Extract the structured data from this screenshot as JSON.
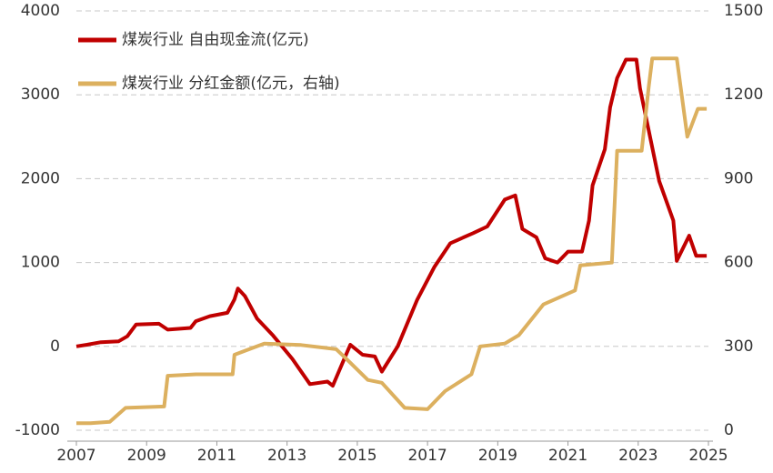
{
  "chart_data": {
    "type": "line",
    "xlim": [
      2007,
      2025
    ],
    "xticks": [
      2007,
      2009,
      2011,
      2013,
      2015,
      2017,
      2019,
      2021,
      2023,
      2025
    ],
    "ylim": [
      -1000,
      4000
    ],
    "yticks": [
      -1000,
      0,
      1000,
      2000,
      3000,
      4000
    ],
    "y2lim": [
      0,
      1500
    ],
    "y2ticks": [
      0,
      300,
      600,
      900,
      1200,
      1500
    ],
    "grid": true,
    "legend": "top-left",
    "series": [
      {
        "name": "煤炭行业 自由现金流(亿元)",
        "color": "#c00000",
        "x": [
          2007.0,
          2007.3,
          2007.7,
          2008.2,
          2008.45,
          2008.7,
          2009.35,
          2009.6,
          2010.25,
          2010.4,
          2010.8,
          2011.3,
          2011.5,
          2011.6,
          2011.8,
          2012.15,
          2012.6,
          2013.15,
          2013.65,
          2014.15,
          2014.3,
          2014.8,
          2015.15,
          2015.5,
          2015.7,
          2016.15,
          2016.7,
          2017.2,
          2017.65,
          2018.3,
          2018.7,
          2019.2,
          2019.5,
          2019.7,
          2020.1,
          2020.35,
          2020.7,
          2021.0,
          2021.4,
          2021.6,
          2021.7,
          2022.05,
          2022.2,
          2022.4,
          2022.65,
          2022.95,
          2023.05,
          2023.6,
          2024.0,
          2024.1,
          2024.45,
          2024.65,
          2024.95
        ],
        "values": [
          0,
          20,
          50,
          60,
          120,
          260,
          270,
          200,
          220,
          300,
          360,
          400,
          560,
          690,
          600,
          330,
          130,
          -150,
          -450,
          -420,
          -470,
          20,
          -100,
          -120,
          -300,
          0,
          550,
          950,
          1230,
          1350,
          1430,
          1750,
          1800,
          1400,
          1300,
          1050,
          1000,
          1130,
          1130,
          1500,
          1920,
          2350,
          2850,
          3200,
          3420,
          3420,
          3080,
          1970,
          1500,
          1020,
          1320,
          1080,
          1080
        ]
      },
      {
        "name": "煤炭行业 分红金额(亿元，右轴)",
        "color": "#dcb05f",
        "axis": "y2",
        "x": [
          2007.0,
          2007.4,
          2007.95,
          2008.4,
          2009.5,
          2009.6,
          2010.4,
          2011.45,
          2011.5,
          2012.35,
          2013.4,
          2014.4,
          2014.65,
          2015.3,
          2015.7,
          2016.35,
          2017.0,
          2017.5,
          2018.25,
          2018.5,
          2019.2,
          2019.6,
          2020.3,
          2021.2,
          2021.35,
          2022.25,
          2022.4,
          2023.1,
          2023.3,
          2023.4,
          2024.1,
          2024.4,
          2024.7,
          2024.95
        ],
        "values": [
          25,
          25,
          30,
          80,
          85,
          195,
          200,
          200,
          270,
          310,
          305,
          290,
          260,
          180,
          170,
          80,
          75,
          140,
          200,
          300,
          310,
          340,
          450,
          500,
          590,
          600,
          1000,
          1000,
          1230,
          1330,
          1330,
          1050,
          1150,
          1150
        ]
      }
    ]
  }
}
